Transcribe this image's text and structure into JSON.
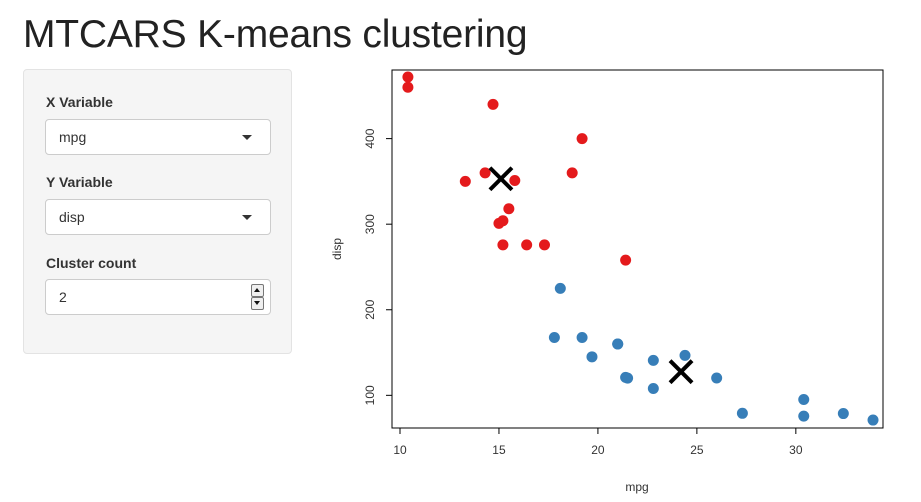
{
  "page": {
    "title": "MTCARS K-means clustering"
  },
  "sidebar": {
    "x_variable": {
      "label": "X Variable",
      "value": "mpg"
    },
    "y_variable": {
      "label": "Y Variable",
      "value": "disp"
    },
    "cluster_count": {
      "label": "Cluster count",
      "value": "2"
    }
  },
  "chart_data": {
    "type": "scatter",
    "xlabel": "mpg",
    "ylabel": "disp",
    "xlim": [
      10,
      34
    ],
    "ylim": [
      70,
      472
    ],
    "x_ticks": [
      10,
      15,
      20,
      25,
      30
    ],
    "y_ticks": [
      100,
      200,
      300,
      400
    ],
    "grid": false,
    "series": [
      {
        "color": "#E41A1C",
        "points": [
          [
            10.4,
            472
          ],
          [
            10.4,
            460
          ],
          [
            14.7,
            440
          ],
          [
            19.2,
            400
          ],
          [
            18.7,
            360
          ],
          [
            14.3,
            360
          ],
          [
            13.3,
            350
          ],
          [
            15.8,
            351
          ],
          [
            15.5,
            318
          ],
          [
            15.2,
            304
          ],
          [
            15.0,
            301
          ],
          [
            15.2,
            275.8
          ],
          [
            16.4,
            275.8
          ],
          [
            17.3,
            275.8
          ],
          [
            21.4,
            258
          ]
        ]
      },
      {
        "color": "#377EB8",
        "points": [
          [
            18.1,
            225
          ],
          [
            17.8,
            167.6
          ],
          [
            19.2,
            167.6
          ],
          [
            21.0,
            160
          ],
          [
            21.0,
            160
          ],
          [
            19.7,
            145
          ],
          [
            22.8,
            140.8
          ],
          [
            24.4,
            146.7
          ],
          [
            21.4,
            121
          ],
          [
            21.5,
            120.1
          ],
          [
            26.0,
            120.3
          ],
          [
            22.8,
            108
          ],
          [
            30.4,
            95.1
          ],
          [
            27.3,
            79
          ],
          [
            32.4,
            78.7
          ],
          [
            30.4,
            75.7
          ],
          [
            33.9,
            71.1
          ]
        ]
      }
    ],
    "centers": [
      [
        15.1,
        353.1
      ],
      [
        24.2,
        127.6
      ]
    ]
  }
}
